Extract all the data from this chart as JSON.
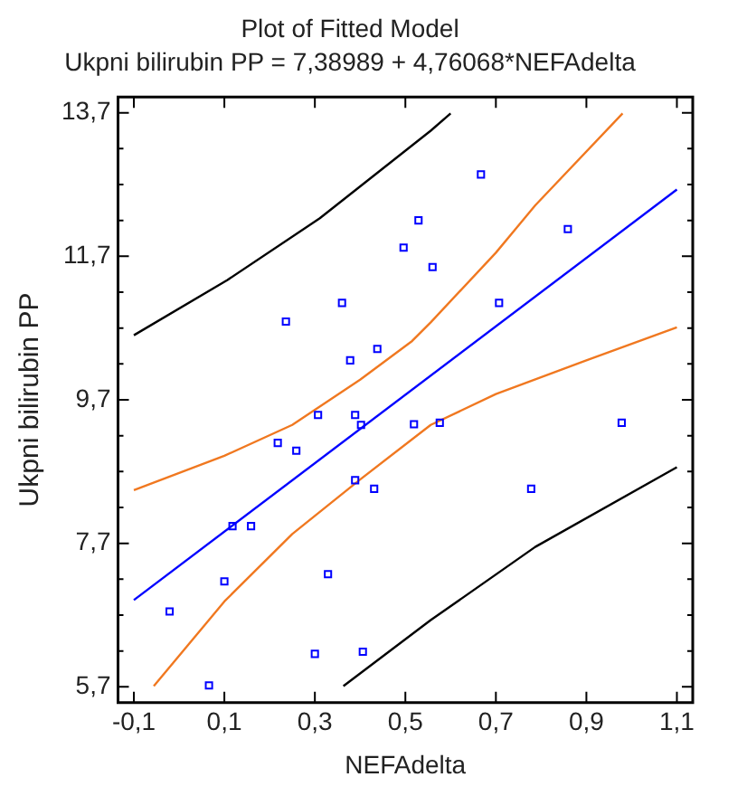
{
  "chart_data": {
    "type": "scatter",
    "title": "Plot of Fitted Model",
    "subtitle": "Ukpni bilirubin PP = 7,38989 + 4,76068*NEFAdelta",
    "xlabel": "NEFAdelta",
    "ylabel": "Ukpni bilirubin PP",
    "xlim": [
      -0.135,
      1.135
    ],
    "ylim": [
      5.48,
      13.92
    ],
    "xticks": [
      {
        "value": -0.1,
        "label": "-0,1"
      },
      {
        "value": 0.1,
        "label": "0,1"
      },
      {
        "value": 0.3,
        "label": "0,3"
      },
      {
        "value": 0.5,
        "label": "0,5"
      },
      {
        "value": 0.7,
        "label": "0,7"
      },
      {
        "value": 0.9,
        "label": "0,9"
      },
      {
        "value": 1.1,
        "label": "1,1"
      }
    ],
    "yticks": [
      {
        "value": 5.7,
        "label": "5,7"
      },
      {
        "value": 6.2,
        "label": null
      },
      {
        "value": 6.7,
        "label": null
      },
      {
        "value": 7.2,
        "label": null
      },
      {
        "value": 7.7,
        "label": "7,7"
      },
      {
        "value": 8.2,
        "label": null
      },
      {
        "value": 8.7,
        "label": null
      },
      {
        "value": 9.2,
        "label": null
      },
      {
        "value": 9.7,
        "label": "9,7"
      },
      {
        "value": 10.2,
        "label": null
      },
      {
        "value": 10.7,
        "label": null
      },
      {
        "value": 11.2,
        "label": null
      },
      {
        "value": 11.7,
        "label": "11,7"
      },
      {
        "value": 12.2,
        "label": null
      },
      {
        "value": 12.7,
        "label": null
      },
      {
        "value": 13.2,
        "label": null
      },
      {
        "value": 13.7,
        "label": "13,7"
      }
    ],
    "grid": false,
    "legend": false,
    "marker": "square",
    "series": [
      {
        "type": "scatter",
        "color": "#0000ff",
        "x": [
          0.236,
          0.36,
          0.378,
          0.438,
          0.496,
          0.529,
          0.56,
          0.307,
          0.389,
          0.402,
          0.667,
          0.859,
          0.707,
          0.519,
          0.576,
          0.978,
          0.218,
          0.259,
          0.389,
          0.431,
          0.118,
          0.159,
          0.1,
          0.329,
          -0.021,
          0.3,
          0.406,
          0.066,
          0.778
        ],
        "values": [
          10.79,
          11.05,
          10.25,
          10.41,
          11.82,
          12.2,
          11.55,
          9.49,
          9.49,
          9.35,
          12.84,
          12.08,
          11.05,
          9.36,
          9.38,
          9.38,
          9.1,
          8.99,
          8.58,
          8.46,
          7.94,
          7.94,
          7.17,
          7.27,
          6.75,
          6.16,
          6.19,
          5.72,
          8.46
        ]
      },
      {
        "type": "line",
        "marker": "none",
        "color": "#0000ff",
        "x": [
          -0.1,
          1.1
        ],
        "values": [
          6.91,
          12.63
        ]
      },
      {
        "type": "line",
        "marker": "none",
        "color": "#f07820",
        "x": [
          -0.1,
          0.1,
          0.25,
          0.4,
          0.515,
          0.556,
          0.7,
          0.787,
          0.98
        ],
        "values": [
          8.44,
          8.92,
          9.35,
          9.98,
          10.52,
          10.78,
          11.75,
          12.41,
          13.69
        ]
      },
      {
        "type": "line",
        "marker": "none",
        "color": "#f07820",
        "x": [
          -0.056,
          0.1,
          0.25,
          0.4,
          0.556,
          0.7,
          0.9,
          1.1
        ],
        "values": [
          5.71,
          6.89,
          7.83,
          8.59,
          9.35,
          9.78,
          10.25,
          10.71
        ]
      },
      {
        "type": "line",
        "marker": "none",
        "color": "#000000",
        "x": [
          -0.1,
          0.107,
          0.311,
          0.556,
          0.6
        ],
        "values": [
          10.6,
          11.37,
          12.23,
          13.45,
          13.69
        ]
      },
      {
        "type": "line",
        "marker": "none",
        "color": "#000000",
        "x": [
          0.363,
          0.556,
          0.787,
          1.1
        ],
        "values": [
          5.71,
          6.63,
          7.65,
          8.76
        ]
      }
    ]
  }
}
